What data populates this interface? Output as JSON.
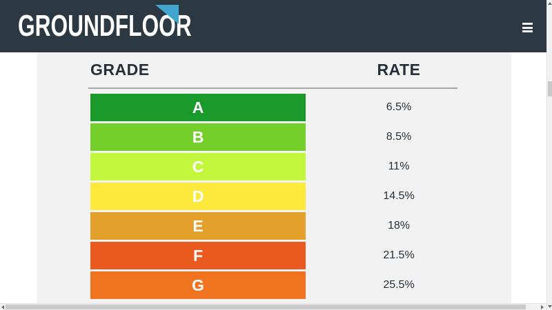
{
  "header": {
    "logo_text": "GROUNDFLOOR"
  },
  "table": {
    "columns": {
      "grade": "GRADE",
      "rate": "RATE"
    },
    "rows": [
      {
        "grade": "A",
        "rate": "6.5%",
        "color": "#1a9a2a"
      },
      {
        "grade": "B",
        "rate": "8.5%",
        "color": "#74cf2b"
      },
      {
        "grade": "C",
        "rate": "11%",
        "color": "#c3f73e"
      },
      {
        "grade": "D",
        "rate": "14.5%",
        "color": "#fce93c"
      },
      {
        "grade": "E",
        "rate": "18%",
        "color": "#e2a02b"
      },
      {
        "grade": "F",
        "rate": "21.5%",
        "color": "#ea5a1e"
      },
      {
        "grade": "G",
        "rate": "25.5%",
        "color": "#f0731f"
      }
    ]
  },
  "colors": {
    "header_bg": "#2d3942",
    "logo_triangle": "#41a6cf",
    "content_bg": "#f2f2f2",
    "text_dark": "#262f38",
    "divider": "#a3a3a3",
    "bar_text": "#ffffff"
  },
  "icons": {
    "menu": "hamburger-icon",
    "logo_mark": "triangle-flag-icon"
  }
}
